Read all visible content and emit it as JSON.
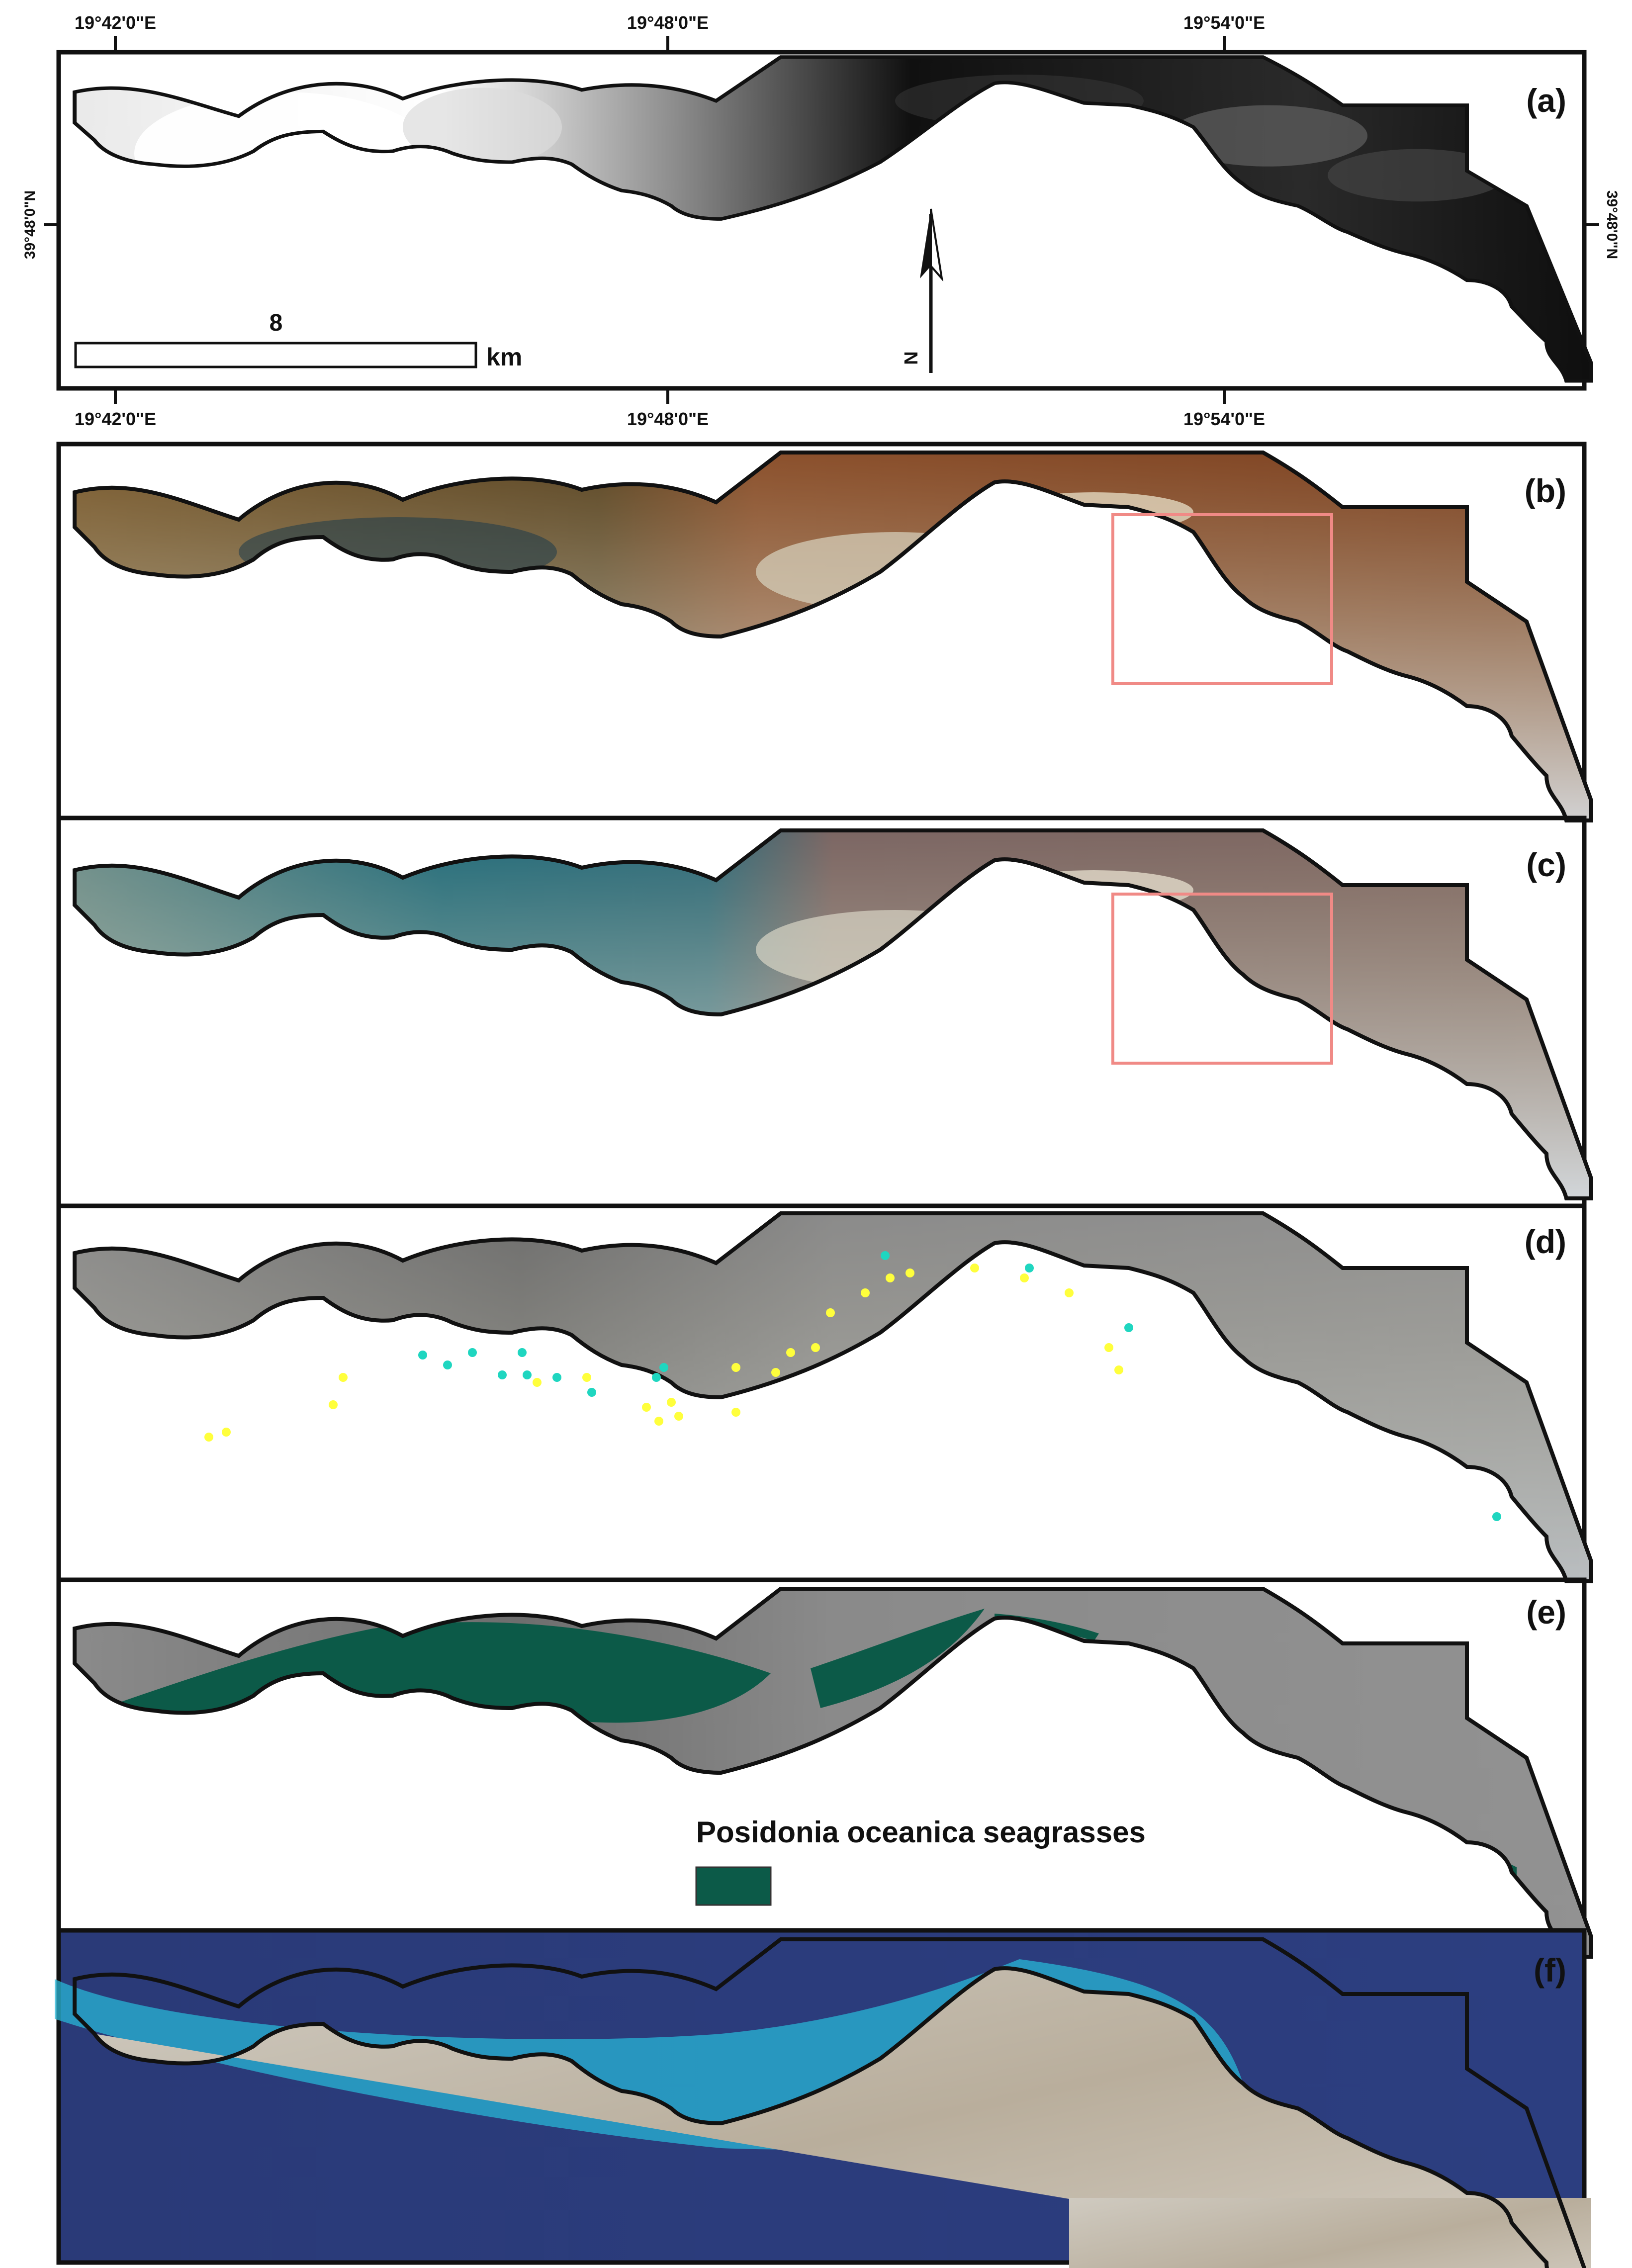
{
  "graticule": {
    "top_longitudes": [
      "19°42'0\"E",
      "19°48'0\"E",
      "19°54'0\"E"
    ],
    "bottom_longitudes": [
      "19°42'0\"E",
      "19°48'0\"E",
      "19°54'0\"E"
    ],
    "left_latitude": "39°48'0\"N",
    "right_latitude": "39°48'0\"N"
  },
  "scale_bar": {
    "value": "8",
    "unit": "km"
  },
  "north_arrow": {
    "label": "N"
  },
  "panels": [
    {
      "id": "a",
      "label": "(a)",
      "style": "cloudy-satellite"
    },
    {
      "id": "b",
      "label": "(b)",
      "style": "brown-composite",
      "inset_box": true
    },
    {
      "id": "c",
      "label": "(c)",
      "style": "teal-composite",
      "inset_box": true
    },
    {
      "id": "d",
      "label": "(d)",
      "style": "grayscale-with-samples"
    },
    {
      "id": "e",
      "label": "(e)",
      "style": "grayscale-classified"
    },
    {
      "id": "f",
      "label": "(f)",
      "style": "true-color"
    }
  ],
  "legend": {
    "label": "Posidonia oceanica seagrasses",
    "color": "#0c5a48"
  },
  "colors": {
    "inset_box": "#f08a86",
    "sample_yellow": "#ffff3c",
    "sample_cyan": "#1fd6c0",
    "outline": "#111111"
  }
}
